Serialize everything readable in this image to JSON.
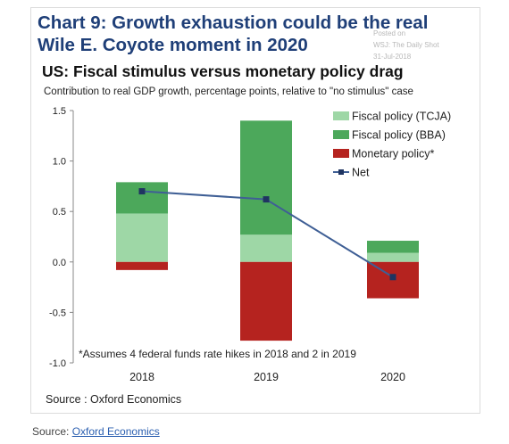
{
  "headline": {
    "line1": "Chart 9: Growth exhaustion could be the real",
    "line2": "Wile E. Coyote moment in 2020"
  },
  "watermark": {
    "line1": "Posted on",
    "line2": "WSJ: The Daily Shot",
    "line3": "31-Jul-2018"
  },
  "chart_data": {
    "type": "bar",
    "title": "US: Fiscal stimulus versus monetary policy drag",
    "subtitle": "Contribution to real GDP growth, percentage points, relative to \"no stimulus\" case",
    "categories": [
      "2018",
      "2019",
      "2020"
    ],
    "stacked": true,
    "series": [
      {
        "name": "Fiscal policy (TCJA)",
        "type": "bar",
        "color": "#9ed7a6",
        "values": [
          0.48,
          0.27,
          0.09
        ]
      },
      {
        "name": "Fiscal policy (BBA)",
        "type": "bar",
        "color": "#4ca85b",
        "values": [
          0.31,
          1.13,
          0.12
        ]
      },
      {
        "name": "Monetary policy*",
        "type": "bar",
        "color": "#b5231f",
        "values": [
          -0.08,
          -0.78,
          -0.36
        ]
      },
      {
        "name": "Net",
        "type": "line",
        "color": "#3f5f95",
        "values": [
          0.7,
          0.62,
          -0.15
        ]
      }
    ],
    "yticks": [
      "1.5",
      "1.0",
      "0.5",
      "0.0",
      "-0.5",
      "-1.0"
    ],
    "ylim": [
      -1.0,
      1.5
    ],
    "legend_position": "top-right",
    "annotation": "*Assumes 4 federal funds rate hikes in 2018 and 2 in 2019",
    "source": "Source : Oxford Economics"
  },
  "footer": {
    "prefix": "Source: ",
    "link": "Oxford Economics"
  }
}
